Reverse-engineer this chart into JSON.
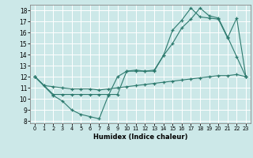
{
  "xlabel": "Humidex (Indice chaleur)",
  "bg_color": "#cce8e8",
  "grid_color": "#ffffff",
  "line_color": "#2d7a6e",
  "xlim": [
    -0.5,
    23.5
  ],
  "ylim": [
    7.8,
    18.5
  ],
  "xticks": [
    0,
    1,
    2,
    3,
    4,
    5,
    6,
    7,
    8,
    9,
    10,
    11,
    12,
    13,
    14,
    15,
    16,
    17,
    18,
    19,
    20,
    21,
    22,
    23
  ],
  "yticks": [
    8,
    9,
    10,
    11,
    12,
    13,
    14,
    15,
    16,
    17,
    18
  ],
  "line_top_x": [
    0,
    1,
    2,
    3,
    4,
    5,
    6,
    7,
    8,
    9,
    10,
    11,
    12,
    13,
    14,
    15,
    16,
    17,
    18,
    19,
    20,
    21,
    22,
    23
  ],
  "line_top_y": [
    12,
    11.2,
    10.4,
    10.4,
    10.4,
    10.4,
    10.4,
    10.4,
    10.4,
    10.4,
    12.5,
    12.5,
    12.5,
    12.6,
    13.9,
    16.2,
    17.1,
    18.2,
    17.4,
    17.3,
    17.2,
    15.5,
    17.3,
    12.0
  ],
  "line_mid_x": [
    0,
    2,
    3,
    4,
    5,
    6,
    7,
    8,
    9,
    10,
    11,
    12,
    13,
    14,
    15,
    16,
    17,
    18,
    19,
    20,
    21,
    22,
    23
  ],
  "line_mid_y": [
    12,
    10.3,
    9.8,
    9.0,
    8.6,
    8.4,
    8.2,
    10.3,
    12.0,
    12.5,
    12.6,
    12.5,
    12.5,
    13.9,
    15.0,
    16.4,
    17.2,
    18.2,
    17.5,
    17.3,
    15.6,
    13.8,
    12.0
  ],
  "line_bot_x": [
    0,
    1,
    2,
    3,
    4,
    5,
    6,
    7,
    8,
    9,
    10,
    11,
    12,
    13,
    14,
    15,
    16,
    17,
    18,
    19,
    20,
    21,
    22,
    23
  ],
  "line_bot_y": [
    12,
    11.2,
    11.1,
    11.0,
    10.9,
    10.9,
    10.9,
    10.8,
    10.9,
    11.0,
    11.1,
    11.2,
    11.3,
    11.4,
    11.5,
    11.6,
    11.7,
    11.8,
    11.9,
    12.0,
    12.1,
    12.1,
    12.2,
    12.0
  ]
}
